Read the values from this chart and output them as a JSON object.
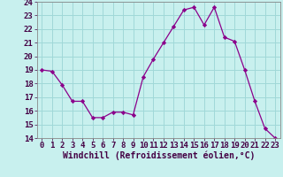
{
  "x": [
    0,
    1,
    2,
    3,
    4,
    5,
    6,
    7,
    8,
    9,
    10,
    11,
    12,
    13,
    14,
    15,
    16,
    17,
    18,
    19,
    20,
    21,
    22,
    23
  ],
  "y": [
    19.0,
    18.9,
    17.9,
    16.7,
    16.7,
    15.5,
    15.5,
    15.9,
    15.9,
    15.7,
    18.5,
    19.8,
    21.0,
    22.2,
    23.4,
    23.6,
    22.3,
    23.6,
    21.4,
    21.1,
    19.0,
    16.7,
    14.7,
    14.0
  ],
  "line_color": "#8b008b",
  "marker": "D",
  "marker_size": 2.2,
  "bg_color": "#c8f0ee",
  "grid_color": "#a0d8d8",
  "xlabel": "Windchill (Refroidissement éolien,°C)",
  "xlabel_fontsize": 7,
  "tick_fontsize": 6.5,
  "ylim": [
    14,
    24
  ],
  "xlim": [
    -0.5,
    23.5
  ],
  "yticks": [
    14,
    15,
    16,
    17,
    18,
    19,
    20,
    21,
    22,
    23,
    24
  ],
  "xticks": [
    0,
    1,
    2,
    3,
    4,
    5,
    6,
    7,
    8,
    9,
    10,
    11,
    12,
    13,
    14,
    15,
    16,
    17,
    18,
    19,
    20,
    21,
    22,
    23
  ],
  "linewidth": 0.9,
  "spine_color": "#888888"
}
